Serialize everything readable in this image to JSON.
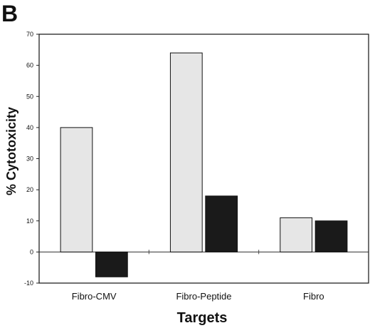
{
  "panel_label": "B",
  "chart_data": {
    "type": "bar",
    "title": "",
    "xlabel": "Targets",
    "ylabel": "% Cytotoxicity",
    "ylim": [
      -10,
      70
    ],
    "yticks": [
      -10,
      0,
      10,
      20,
      30,
      40,
      50,
      60,
      70
    ],
    "categories": [
      "Fibro-CMV",
      "Fibro-Peptide",
      "Fibro"
    ],
    "series": [
      {
        "values": [
          40,
          64,
          11
        ],
        "color": "#e6e6e6"
      },
      {
        "values": [
          -8,
          18,
          10
        ],
        "color": "#1a1a1a"
      }
    ],
    "grid": false,
    "legend": "none"
  }
}
